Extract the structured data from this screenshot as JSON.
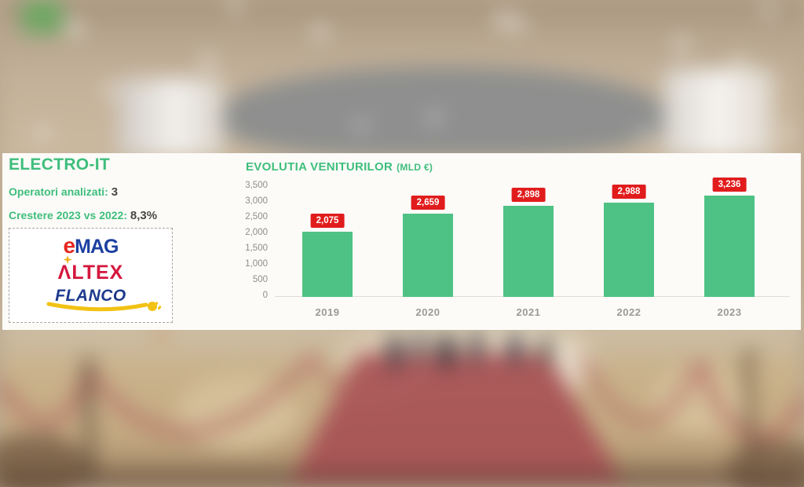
{
  "panel": {
    "title": "ELECTRO-IT",
    "stats": [
      {
        "label": "Operatori analizati:",
        "value": "3"
      },
      {
        "label": "Crestere 2023 vs 2022:",
        "value": "8,3%"
      }
    ],
    "logos": [
      {
        "name": "eMAG",
        "part1": "e",
        "part2": "MAG"
      },
      {
        "name": "ALTEX",
        "text": "ΛLTEX"
      },
      {
        "name": "FLANCO",
        "text": "FLANCO"
      }
    ]
  },
  "chart_data": {
    "type": "bar",
    "title": "EVOLUTIA VENITURILOR",
    "title_suffix": "(MLD €)",
    "categories": [
      "2019",
      "2020",
      "2021",
      "2022",
      "2023"
    ],
    "values": [
      2075,
      2659,
      2898,
      2988,
      3236
    ],
    "value_labels": [
      "2,075",
      "2,659",
      "2,898",
      "2,988",
      "3,236"
    ],
    "xlabel": "",
    "ylabel": "",
    "ylim": [
      0,
      3500
    ],
    "y_ticks": [
      {
        "value": 3500,
        "label": "3,500"
      },
      {
        "value": 3000,
        "label": "3,000"
      },
      {
        "value": 2500,
        "label": "2,500"
      },
      {
        "value": 2000,
        "label": "2,000"
      },
      {
        "value": 1500,
        "label": "1,500"
      },
      {
        "value": 1000,
        "label": "1,000"
      },
      {
        "value": 500,
        "label": "500"
      },
      {
        "value": 0,
        "label": "0"
      }
    ],
    "grid": false,
    "legend": false,
    "bar_color": "#4ec284",
    "data_label_bg": "#e11c1c",
    "data_label_color": "#ffffff"
  },
  "colors": {
    "accent_green": "#3ebe7c",
    "dark_text": "#474747",
    "axis_text": "#8d8d8d",
    "emag_red": "#e6251f",
    "emag_blue": "#1c3fa0",
    "altex_red": "#d5173d",
    "altex_yellow": "#f0b11c",
    "flanco_blue": "#1c3a8c",
    "flanco_yellow": "#f2c214"
  }
}
